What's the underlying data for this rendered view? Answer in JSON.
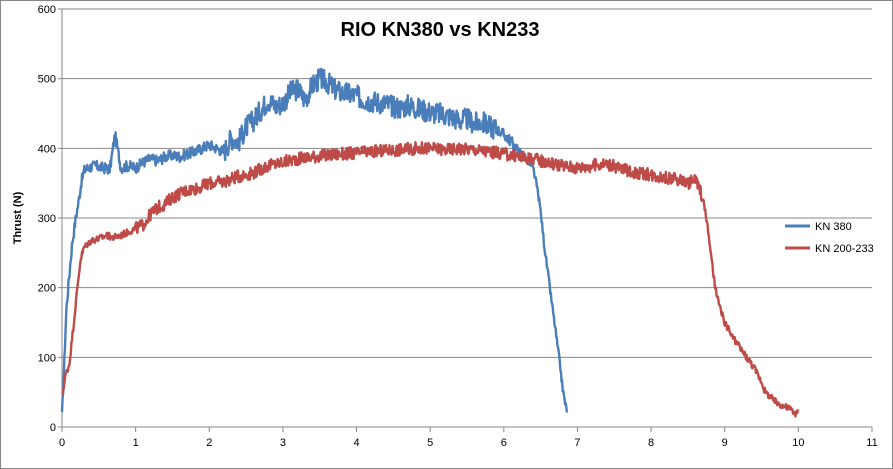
{
  "chart_data": {
    "type": "line",
    "title": "RIO KN380 vs KN233",
    "xlabel": "",
    "ylabel": "Thrust (N)",
    "xlim": [
      0,
      11
    ],
    "ylim": [
      0,
      600
    ],
    "xticks": [
      "0",
      "1",
      "2",
      "3",
      "4",
      "5",
      "6",
      "7",
      "8",
      "9",
      "10",
      "11"
    ],
    "yticks": [
      "0",
      "100",
      "200",
      "300",
      "400",
      "500",
      "600"
    ],
    "grid": "horizontal",
    "legend_position": "right",
    "series": [
      {
        "name": "KN 380",
        "color": "#4a7ebb",
        "x": [
          0.0,
          0.03,
          0.06,
          0.1,
          0.14,
          0.18,
          0.22,
          0.26,
          0.3,
          0.35,
          0.45,
          0.55,
          0.65,
          0.72,
          0.8,
          0.9,
          1.0,
          1.1,
          1.2,
          1.3,
          1.4,
          1.5,
          1.6,
          1.7,
          1.8,
          1.9,
          2.0,
          2.1,
          2.2,
          2.3,
          2.4,
          2.5,
          2.6,
          2.7,
          2.8,
          2.9,
          3.0,
          3.1,
          3.2,
          3.3,
          3.4,
          3.5,
          3.6,
          3.7,
          3.8,
          3.9,
          4.0,
          4.1,
          4.2,
          4.3,
          4.4,
          4.5,
          4.6,
          4.7,
          4.8,
          4.9,
          5.0,
          5.1,
          5.2,
          5.3,
          5.4,
          5.5,
          5.6,
          5.7,
          5.8,
          5.9,
          6.0,
          6.1,
          6.2,
          6.3,
          6.4,
          6.45,
          6.5,
          6.55,
          6.6,
          6.65,
          6.7,
          6.75,
          6.8,
          6.83,
          6.86
        ],
        "values": [
          15,
          90,
          170,
          220,
          265,
          295,
          320,
          350,
          368,
          372,
          375,
          372,
          370,
          420,
          372,
          375,
          372,
          380,
          385,
          382,
          388,
          390,
          388,
          392,
          395,
          400,
          405,
          400,
          395,
          415,
          410,
          430,
          440,
          455,
          470,
          460,
          465,
          480,
          485,
          470,
          490,
          500,
          495,
          485,
          480,
          478,
          475,
          470,
          468,
          466,
          464,
          460,
          458,
          462,
          458,
          455,
          452,
          450,
          448,
          445,
          440,
          442,
          435,
          438,
          432,
          428,
          420,
          410,
          395,
          385,
          370,
          345,
          310,
          260,
          220,
          180,
          140,
          100,
          55,
          35,
          22
        ]
      },
      {
        "name": "KN 200-233",
        "color": "#be4b48",
        "x": [
          0.0,
          0.05,
          0.1,
          0.15,
          0.2,
          0.25,
          0.3,
          0.4,
          0.5,
          0.6,
          0.7,
          0.8,
          0.9,
          1.0,
          1.1,
          1.2,
          1.3,
          1.4,
          1.5,
          1.6,
          1.7,
          1.8,
          1.9,
          2.0,
          2.2,
          2.4,
          2.6,
          2.8,
          3.0,
          3.2,
          3.4,
          3.6,
          3.8,
          4.0,
          4.2,
          4.4,
          4.6,
          4.8,
          5.0,
          5.2,
          5.4,
          5.6,
          5.8,
          6.0,
          6.2,
          6.4,
          6.6,
          6.8,
          7.0,
          7.2,
          7.4,
          7.6,
          7.8,
          8.0,
          8.2,
          8.4,
          8.5,
          8.6,
          8.65,
          8.7,
          8.75,
          8.8,
          8.85,
          8.9,
          8.95,
          9.0,
          9.1,
          9.2,
          9.3,
          9.4,
          9.5,
          9.55,
          9.6,
          9.7,
          9.8,
          9.9,
          9.95,
          10.0
        ],
        "values": [
          45,
          75,
          90,
          140,
          190,
          240,
          258,
          268,
          270,
          275,
          272,
          275,
          280,
          285,
          290,
          305,
          315,
          320,
          330,
          335,
          340,
          342,
          345,
          350,
          352,
          360,
          365,
          375,
          380,
          385,
          388,
          390,
          392,
          393,
          395,
          397,
          398,
          400,
          400,
          398,
          400,
          398,
          395,
          392,
          388,
          385,
          380,
          375,
          372,
          375,
          378,
          370,
          365,
          362,
          358,
          355,
          350,
          355,
          345,
          330,
          300,
          260,
          215,
          185,
          165,
          150,
          130,
          115,
          100,
          85,
          65,
          50,
          45,
          35,
          30,
          25,
          20,
          20
        ]
      }
    ]
  }
}
